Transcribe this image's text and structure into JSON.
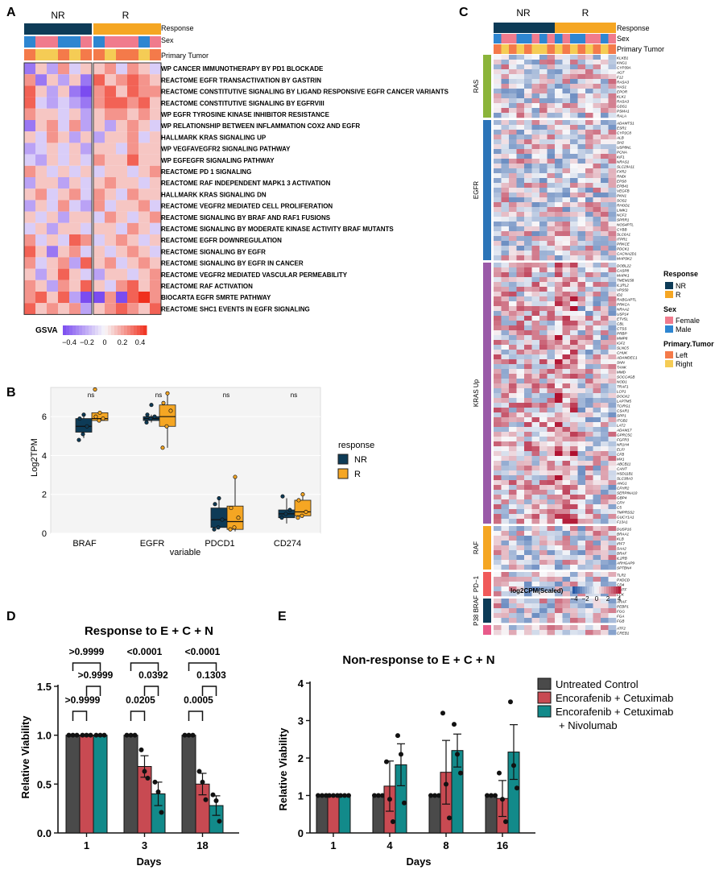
{
  "colors": {
    "nr": "#0d3b57",
    "r": "#f5a623",
    "female": "#f07b8d",
    "male": "#2e86d1",
    "left": "#f47a4a",
    "right": "#f5cc55",
    "ras": "#8bb43a",
    "egfr": "#2c74b8",
    "kras": "#9a5aa8",
    "raf": "#f5a623",
    "pd1": "#f05a5a",
    "p38": "#0d3b57",
    "p38b": "#e85a8a",
    "gsva_low": "#7b4cf0",
    "gsva_high": "#f0301e",
    "untreated": "#4a4a4a",
    "ec": "#c84a52",
    "ecn": "#128a8a"
  },
  "chart_data": [
    {
      "panel": "A",
      "type": "heatmap",
      "columns_nr": 6,
      "columns_r": 6,
      "annotations": [
        "Response",
        "Sex",
        "Primary Tumor"
      ],
      "group_labels": [
        "NR",
        "R"
      ],
      "sex_row": [
        "male",
        "female",
        "female",
        "male",
        "male",
        "female",
        "male",
        "female",
        "female",
        "female",
        "male",
        "female"
      ],
      "tumor_row": [
        "left",
        "right",
        "right",
        "left",
        "right",
        "left",
        "left",
        "right",
        "left",
        "left",
        "right",
        "left"
      ],
      "rows": [
        "WP CANCER IMMUNOTHERAPY BY PD1 BLOCKADE",
        "REACTOME EGFR TRANSACTIVATION BY GASTRIN",
        "REACTOME CONSTITUTIVE SIGNALING BY LIGAND RESPONSIVE EGFR CANCER VARIANTS",
        "REACTOME CONSTITUTIVE SIGNALING BY EGFRVIII",
        "WP EGFR TYROSINE KINASE INHIBITOR RESISTANCE",
        "WP RELATIONSHIP BETWEEN INFLAMMATION COX2 AND EGFR",
        "HALLMARK KRAS SIGNALING UP",
        "WP VEGFAVEGFR2 SIGNALING PATHWAY",
        "WP EGFEGFR SIGNALING PATHWAY",
        "REACTOME PD 1 SIGNALING",
        "REACTOME RAF INDEPENDENT MAPK1 3 ACTIVATION",
        "HALLMARK KRAS SIGNALING DN",
        "REACTOME VEGFR2 MEDIATED CELL PROLIFERATION",
        "REACTOME SIGNALING BY BRAF AND RAF1 FUSIONS",
        "REACTOME SIGNALING BY MODERATE KINASE ACTIVITY BRAF MUTANTS",
        "REACTOME EGFR DOWNREGULATION",
        "REACTOME SIGNALING BY EGFR",
        "REACTOME SIGNALING BY EGFR IN CANCER",
        "REACTOME VEGFR2 MEDIATED VASCULAR PERMEABILITY",
        "REACTOME RAF ACTIVATION",
        "BIOCARTA EGFR SMRTE PATHWAY",
        "REACTOME SHC1 EVENTS IN EGFR SIGNALING"
      ],
      "values": [
        [
          -0.3,
          0.1,
          -0.2,
          0.2,
          -0.1,
          0.1,
          0.1,
          0.2,
          -0.1,
          0.2,
          0.1,
          -0.1
        ],
        [
          0.2,
          -0.3,
          0.1,
          -0.2,
          0.1,
          -0.3,
          0.3,
          0.1,
          0.2,
          0.3,
          0.2,
          0.1
        ],
        [
          0.3,
          0.1,
          -0.2,
          0.1,
          -0.3,
          -0.4,
          0.2,
          0.3,
          0.1,
          0.3,
          0.2,
          0.2
        ],
        [
          0.3,
          -0.1,
          -0.2,
          -0.1,
          -0.2,
          -0.3,
          0.2,
          0.3,
          0.3,
          0.2,
          0.3,
          0.1
        ],
        [
          0.2,
          0.1,
          0.1,
          -0.1,
          0.1,
          -0.2,
          0.1,
          0.2,
          0.2,
          0.1,
          0.2,
          0.1
        ],
        [
          -0.3,
          0.1,
          0.2,
          -0.1,
          0.2,
          -0.2,
          0.1,
          -0.2,
          0.1,
          0.2,
          0.1,
          -0.1
        ],
        [
          0.1,
          -0.1,
          0.2,
          0.1,
          -0.2,
          0.1,
          -0.2,
          0.1,
          0.1,
          0.2,
          -0.1,
          0.1
        ],
        [
          -0.2,
          -0.1,
          0.1,
          -0.1,
          0.1,
          -0.2,
          0.1,
          0.1,
          -0.1,
          0.2,
          0.1,
          0.1
        ],
        [
          -0.1,
          -0.2,
          0.1,
          -0.1,
          0.1,
          -0.1,
          0.2,
          0.1,
          0.1,
          0.3,
          0.1,
          0.1
        ],
        [
          0.2,
          0.1,
          -0.1,
          0.1,
          -0.1,
          0.1,
          -0.1,
          0.1,
          0.1,
          -0.1,
          0.1,
          0.2
        ],
        [
          -0.2,
          0.1,
          0.1,
          -0.2,
          0.1,
          -0.1,
          0.1,
          0.2,
          0.1,
          0.1,
          -0.1,
          0.1
        ],
        [
          0.1,
          0.2,
          -0.1,
          0.1,
          0.2,
          -0.1,
          0.2,
          0.1,
          -0.1,
          0.2,
          0.1,
          0.1
        ],
        [
          -0.2,
          0.1,
          -0.1,
          0.2,
          -0.1,
          -0.2,
          0.2,
          -0.1,
          0.1,
          0.1,
          0.2,
          -0.1
        ],
        [
          0.1,
          -0.1,
          0.1,
          -0.2,
          0.1,
          0.1,
          -0.1,
          0.2,
          0.1,
          -0.1,
          0.1,
          0.2
        ],
        [
          -0.1,
          0.1,
          -0.2,
          0.1,
          0.1,
          -0.1,
          0.1,
          0.1,
          -0.1,
          0.2,
          0.1,
          -0.1
        ],
        [
          0.2,
          -0.1,
          0.1,
          -0.1,
          0.3,
          0.2,
          -0.1,
          0.1,
          0.2,
          0.1,
          -0.1,
          0.1
        ],
        [
          0.3,
          0.1,
          -0.3,
          0.1,
          0.2,
          -0.1,
          0.1,
          -0.1,
          0.1,
          0.2,
          0.1,
          -0.1
        ],
        [
          0.2,
          -0.1,
          0.1,
          0.2,
          -0.2,
          0.3,
          0.1,
          0.2,
          -0.1,
          0.1,
          0.2,
          0.1
        ],
        [
          0.1,
          -0.2,
          0.1,
          0.3,
          0.1,
          -0.1,
          -0.2,
          0.1,
          0.1,
          -0.1,
          0.1,
          0.2
        ],
        [
          0.2,
          0.1,
          -0.2,
          0.2,
          0.1,
          0.3,
          0.1,
          -0.1,
          0.2,
          0.3,
          0.1,
          0.2
        ],
        [
          0.2,
          0.3,
          0.1,
          0.3,
          -0.2,
          -0.4,
          -0.4,
          0.2,
          -0.4,
          0.3,
          0.4,
          0.2
        ],
        [
          0.3,
          0.1,
          0.2,
          0.1,
          0.2,
          -0.2,
          0.1,
          0.2,
          0.3,
          0.2,
          0.1,
          0.3
        ]
      ],
      "legend_title": "GSVA",
      "legend_ticks": [
        "−0.4",
        "−0.2",
        "0",
        "0.2",
        "0.4"
      ],
      "range": [
        -0.4,
        0.4
      ]
    },
    {
      "panel": "B",
      "type": "boxplot",
      "ylabel": "Log2TPM",
      "xlabel": "variable",
      "categories": [
        "BRAF",
        "EGFR",
        "PDCD1",
        "CD274"
      ],
      "ns_labels": [
        "ns",
        "ns",
        "ns",
        "ns"
      ],
      "ylim": [
        0,
        7.5
      ],
      "yticks": [
        "0",
        "2",
        "4",
        "6"
      ],
      "yticks_values": [
        0,
        2,
        4,
        6
      ],
      "legend_title": "response",
      "series": [
        {
          "name": "NR",
          "boxes": [
            [
              4.9,
              5.2,
              5.5,
              5.9,
              6.1
            ],
            [
              5.7,
              5.8,
              5.9,
              6.0,
              6.1
            ],
            [
              0.2,
              0.3,
              0.7,
              1.3,
              1.8
            ],
            [
              0.5,
              0.8,
              1.0,
              1.2,
              1.8
            ]
          ],
          "points": [
            [
              4.8,
              5.1,
              5.5,
              5.9,
              6.1
            ],
            [
              5.7,
              5.9,
              6.0,
              6.1,
              6.6
            ],
            [
              0.2,
              0.3,
              0.7,
              1.5,
              1.8
            ],
            [
              0.8,
              1.0,
              1.2,
              1.9
            ]
          ]
        },
        {
          "name": "R",
          "boxes": [
            [
              5.7,
              5.8,
              5.9,
              6.2,
              6.3
            ],
            [
              4.4,
              5.5,
              6.0,
              6.6,
              7.2
            ],
            [
              0.1,
              0.2,
              0.6,
              1.4,
              2.9
            ],
            [
              0.8,
              0.9,
              1.1,
              1.7,
              2.0
            ]
          ],
          "points": [
            [
              7.4,
              5.8,
              5.9,
              6.0,
              6.2
            ],
            [
              4.4,
              5.5,
              6.3,
              6.7,
              7.2
            ],
            [
              0.2,
              0.3,
              0.8,
              1.3,
              2.9
            ],
            [
              0.8,
              0.9,
              1.1,
              1.7,
              2.0
            ]
          ]
        }
      ]
    },
    {
      "panel": "C",
      "type": "heatmap",
      "group_labels": [
        "NR",
        "R"
      ],
      "annotations": [
        "Response",
        "Sex",
        "Primary Tumor"
      ],
      "sex_row": [
        "male",
        "female",
        "female",
        "male",
        "male",
        "female",
        "male",
        "female",
        "male",
        "female",
        "male",
        "male",
        "female",
        "female",
        "male",
        "female"
      ],
      "tumor_row": [
        "left",
        "right",
        "left",
        "right",
        "left",
        "right",
        "right",
        "left",
        "right",
        "left",
        "right",
        "left",
        "right",
        "left",
        "right",
        "left"
      ],
      "groups": [
        {
          "name": "RAS",
          "genes": [
            "KLKB1",
            "KNG1",
            "CYP39A",
            "AGT",
            "F12",
            "RASA3",
            "HAS1",
            "EPOR",
            "KLK1",
            "RASA3",
            "GDS1",
            "PSMA1",
            "RALA"
          ]
        },
        {
          "name": "EGFR",
          "genes": [
            "ADAMTS1",
            "ESR1",
            "CYP2C8",
            "ALB",
            "SH2",
            "USP8NL",
            "PCNA",
            "KIF1",
            "NRAS1",
            "SLC29A11",
            "FXR2",
            "RNDI",
            "EPS8",
            "EPB41",
            "VEGFB",
            "PKN1",
            "SOS2",
            "RHOD1",
            "LIMK1",
            "NCF2",
            "SPRR1",
            "NOS4PTL",
            "CYBB",
            "SLC6A1",
            "ITPR1",
            "PRKCE",
            "PDCK1",
            "CACNA2D1",
            "MAPSK2"
          ]
        },
        {
          "name": "KRAS Up",
          "genes": [
            "DOBL22",
            "CASP8",
            "MAPK1",
            "TMEM158",
            "IL1RL2",
            "VPS50",
            "ID2",
            "RABGAPTL",
            "PRKCA",
            "NRAA2",
            "USP14",
            "ETV5L",
            "CBL",
            "CTSS",
            "PRBP",
            "MMP8",
            "IGF2",
            "SLNC5",
            "CHUK",
            "ADAMDEC1",
            "SNN",
            "TANK",
            "MMD",
            "SOCC4GB",
            "NOD1",
            "TRAF1",
            "LCP1",
            "DOCK2",
            "LAPTM5",
            "TCIRG1",
            "CSAR1",
            "SPP1",
            "ITGB2",
            "LAT2",
            "ADAM17",
            "GPRC5C",
            "FGFR3",
            "NR1H4",
            "ELFI",
            "CFB",
            "MX1",
            "ABCB11",
            "CANT",
            "HSD11B1",
            "SLC38A3",
            "ANG1",
            "CFHR2",
            "SERPINA10",
            "GBP4",
            "CFH",
            "C5",
            "TMPRSS2",
            "GUCY1A1",
            "F13A1"
          ]
        },
        {
          "name": "RAF",
          "genes": [
            "DUSP16",
            "BRAA1",
            "KLB",
            "IRF7",
            "SAA2",
            "BRAF",
            "IL2RB",
            "ARHGAP9",
            "SPTBN4"
          ]
        },
        {
          "name": "PD−1",
          "genes": [
            "TLR2",
            "PXDCD",
            "CD4",
            "RUTF",
            "LCK"
          ]
        },
        {
          "name": "P38 BRAF",
          "genes": [
            "ARAF",
            "PEBP1",
            "FGG",
            "FGA",
            "FGB"
          ]
        },
        {
          "name": "",
          "genes": [
            "ATF2",
            "CREB1"
          ]
        }
      ],
      "legend_title": "log2CPM(Scaled)",
      "legend_ticks": [
        "−4",
        "−2",
        "0",
        "2",
        "4"
      ],
      "range": [
        -4,
        4
      ]
    },
    {
      "panel": "D",
      "type": "bar",
      "title": "Response to E + C + N",
      "xlabel": "Days",
      "ylabel": "Relative Viability",
      "categories": [
        "1",
        "3",
        "18"
      ],
      "ylim": [
        0,
        1.5
      ],
      "yticks": [
        "0.0",
        "0.5",
        "1.0",
        "1.5"
      ],
      "yticks_values": [
        0,
        0.5,
        1.0,
        1.5
      ],
      "series": [
        {
          "name": "Untreated Control",
          "values": [
            1.0,
            1.0,
            1.0
          ],
          "errors": [
            0,
            0,
            0
          ],
          "points": [
            [
              1,
              1,
              1
            ],
            [
              1,
              1,
              1
            ],
            [
              1,
              1,
              1
            ]
          ]
        },
        {
          "name": "Encorafenib + Cetuximab",
          "values": [
            1.0,
            0.68,
            0.5
          ],
          "errors": [
            0,
            0.11,
            0.11
          ],
          "points": [
            [
              1,
              1,
              1
            ],
            [
              0.85,
              0.63,
              0.56
            ],
            [
              0.63,
              0.52,
              0.34
            ]
          ]
        },
        {
          "name": "Encorafenib + Cetuximab + Nivolumab",
          "values": [
            1.0,
            0.4,
            0.28
          ],
          "errors": [
            0,
            0.12,
            0.1
          ],
          "points": [
            [
              1,
              1,
              1
            ],
            [
              0.52,
              0.42,
              0.21
            ],
            [
              0.39,
              0.33,
              0.12
            ]
          ]
        }
      ],
      "comparisons": [
        {
          "day": "1",
          "pair": "01",
          "label": ">0.9999"
        },
        {
          "day": "1",
          "pair": "12",
          "label": ">0.9999"
        },
        {
          "day": "1",
          "pair": "02",
          "label": ">0.9999"
        },
        {
          "day": "3",
          "pair": "01",
          "label": "0.0205"
        },
        {
          "day": "3",
          "pair": "12",
          "label": "0.0392"
        },
        {
          "day": "3",
          "pair": "02",
          "label": "<0.0001"
        },
        {
          "day": "18",
          "pair": "01",
          "label": "0.0005"
        },
        {
          "day": "18",
          "pair": "12",
          "label": "0.1303"
        },
        {
          "day": "18",
          "pair": "02",
          "label": "<0.0001"
        }
      ]
    },
    {
      "panel": "E",
      "type": "bar",
      "title": "Non-response to E + C + N",
      "xlabel": "Days",
      "ylabel": "Relative Viability",
      "categories": [
        "1",
        "4",
        "8",
        "16"
      ],
      "ylim": [
        0,
        4
      ],
      "yticks": [
        "0",
        "1",
        "2",
        "3",
        "4"
      ],
      "yticks_values": [
        0,
        1,
        2,
        3,
        4
      ],
      "series": [
        {
          "name": "Untreated Control",
          "values": [
            1.0,
            1.0,
            1.0,
            1.0
          ],
          "errors": [
            0,
            0,
            0,
            0
          ],
          "points": [
            [
              1,
              1,
              1
            ],
            [
              1,
              1,
              1
            ],
            [
              1,
              1,
              1
            ],
            [
              1,
              1,
              1
            ]
          ]
        },
        {
          "name": "Encorafenib + Cetuximab",
          "values": [
            1.0,
            1.25,
            1.62,
            0.92
          ],
          "errors": [
            0,
            0.67,
            0.85,
            0.48
          ],
          "points": [
            [
              1,
              1,
              1
            ],
            [
              1.9,
              0.9,
              0.3
            ],
            [
              3.2,
              1.3,
              0.4
            ],
            [
              1.6,
              0.9,
              0.3
            ]
          ]
        },
        {
          "name": "Encorafenib + Cetuximab + Nivolumab",
          "values": [
            1.0,
            1.82,
            2.2,
            2.16
          ],
          "errors": [
            0,
            0.56,
            0.44,
            0.73
          ],
          "points": [
            [
              1,
              1,
              1
            ],
            [
              2.6,
              2.1,
              0.8
            ],
            [
              2.9,
              2.1,
              1.6
            ],
            [
              3.5,
              1.8,
              1.2
            ]
          ]
        }
      ],
      "legend": [
        "Untreated Control",
        "Encorafenib + Cetuximab",
        "Encorafenib + Cetuximab",
        "+ Nivolumab"
      ]
    }
  ],
  "panel_labels": [
    "A",
    "B",
    "C",
    "D",
    "E"
  ],
  "legends": {
    "response_title": "Response",
    "sex_title": "Sex",
    "tumor_title": "Primary.Tumor",
    "nr": "NR",
    "r": "R",
    "female": "Female",
    "male": "Male",
    "left": "Left",
    "right": "Right",
    "ann_response": "Response",
    "ann_sex": "Sex",
    "ann_tumor": "Primary Tumor"
  }
}
